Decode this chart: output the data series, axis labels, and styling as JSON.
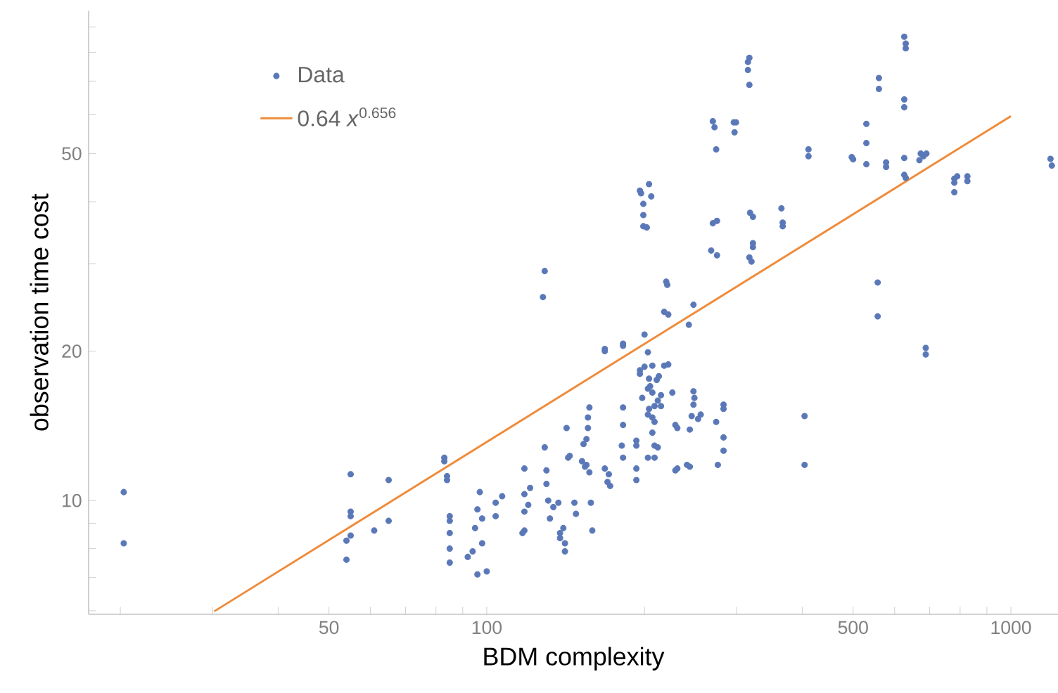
{
  "chart_data": {
    "type": "scatter",
    "xlabel": "BDM complexity",
    "ylabel": "observation time cost",
    "log": "xy",
    "legend": "top left",
    "xlim": [
      17.4,
      1230
    ],
    "ylim": [
      5.9,
      97
    ],
    "xticks": [
      {
        "value": 20,
        "label": null
      },
      {
        "value": 30,
        "label": null
      },
      {
        "value": 40,
        "label": null
      },
      50,
      {
        "value": 60,
        "label": null
      },
      {
        "value": 70,
        "label": null
      },
      {
        "value": 80,
        "label": null
      },
      {
        "value": 90,
        "label": null
      },
      100,
      {
        "value": 200,
        "label": null
      },
      {
        "value": 300,
        "label": null
      },
      {
        "value": 400,
        "label": null
      },
      500,
      {
        "value": 600,
        "label": null
      },
      {
        "value": 700,
        "label": null
      },
      {
        "value": 800,
        "label": null
      },
      {
        "value": 900,
        "label": null
      },
      1000
    ],
    "yticks": [
      {
        "value": 6,
        "label": null
      },
      {
        "value": 7,
        "label": null
      },
      {
        "value": 8,
        "label": null
      },
      {
        "value": 9,
        "label": null
      },
      10,
      20,
      {
        "value": 30,
        "label": null
      },
      {
        "value": 40,
        "label": null
      },
      50,
      {
        "value": 60,
        "label": null
      },
      {
        "value": 70,
        "label": null
      },
      {
        "value": 80,
        "label": null
      },
      {
        "value": 90,
        "label": null
      }
    ],
    "series": [
      {
        "name": "Data",
        "marker": "circle",
        "color": "#5a78b8",
        "x": [
          20.3,
          20.3,
          55,
          55,
          55,
          55,
          54,
          54,
          61,
          65,
          65,
          83,
          83,
          84,
          84,
          85,
          85,
          85,
          85,
          85,
          97,
          96,
          95,
          94,
          92,
          96,
          100,
          98,
          98,
          104,
          104,
          107,
          117,
          118,
          118,
          120,
          118,
          121,
          118,
          130,
          130,
          129,
          131,
          132,
          134,
          137,
          138,
          140,
          138,
          141,
          141,
          142,
          143,
          144,
          147,
          148,
          152,
          153,
          155,
          156,
          156,
          157,
          154,
          155,
          157,
          158,
          159,
          168,
          171,
          172,
          170,
          182,
          182,
          181,
          182,
          193,
          193,
          193,
          193,
          196,
          196,
          200,
          203,
          207,
          204,
          203,
          205,
          207,
          211,
          213,
          198,
          204,
          209,
          212,
          215,
          203,
          207,
          209,
          207,
          209,
          212,
          203,
          209,
          215,
          218,
          222,
          226,
          229,
          231,
          231,
          229,
          241,
          244,
          244,
          246,
          248,
          249,
          248,
          253,
          256,
          274,
          276,
          283,
          283,
          283,
          283,
          243,
          248,
          220,
          221,
          218,
          222,
          168,
          168,
          182,
          182,
          200,
          129,
          128,
          196,
          197,
          199,
          204,
          206,
          199,
          199,
          202,
          270,
          272,
          274,
          296,
          299,
          297,
          270,
          275,
          268,
          275,
          317,
          315,
          315,
          317,
          318,
          322,
          322,
          322,
          317,
          320,
          365,
          367,
          367,
          411,
          411,
          404,
          404,
          557,
          557,
          497,
          500,
          530,
          530,
          530,
          560,
          560,
          578,
          578,
          626,
          630,
          630,
          626,
          626,
          626,
          626,
          630,
          673,
          681,
          690,
          669,
          688,
          688,
          780,
          780,
          780,
          790,
          826,
          826,
          1190,
          1197
        ],
        "values": [
          10.4,
          8.2,
          11.3,
          9.5,
          9.3,
          8.5,
          8.3,
          7.6,
          8.7,
          11.0,
          9.1,
          12.2,
          12.0,
          11.2,
          11.0,
          9.3,
          9.1,
          8.6,
          8.0,
          7.5,
          10.4,
          9.6,
          8.8,
          7.9,
          7.7,
          7.1,
          7.2,
          9.2,
          8.2,
          9.3,
          9.9,
          10.2,
          8.6,
          8.7,
          9.5,
          9.8,
          10.3,
          10.6,
          11.6,
          11.5,
          10.8,
          12.8,
          10.0,
          9.2,
          9.7,
          9.9,
          8.6,
          8.8,
          8.4,
          8.2,
          7.9,
          14.0,
          12.2,
          12.3,
          9.9,
          9.4,
          12.0,
          13.0,
          13.3,
          14.0,
          14.7,
          15.4,
          11.7,
          11.8,
          11.4,
          9.9,
          8.7,
          11.6,
          11.3,
          10.7,
          10.9,
          15.4,
          14.2,
          12.9,
          12.2,
          13.2,
          12.9,
          11.6,
          11.0,
          18.3,
          18.0,
          18.6,
          19.9,
          18.7,
          17.6,
          16.8,
          17.0,
          16.5,
          17.5,
          17.8,
          16.1,
          15.3,
          15.5,
          15.9,
          16.3,
          14.9,
          14.7,
          14.4,
          13.7,
          12.9,
          12.8,
          12.2,
          12.2,
          15.5,
          18.7,
          18.8,
          16.5,
          14.2,
          14.0,
          11.6,
          11.5,
          11.8,
          11.7,
          13.9,
          14.8,
          16.6,
          16.1,
          15.6,
          14.6,
          14.9,
          14.4,
          11.8,
          13.4,
          12.6,
          15.3,
          15.6,
          22.6,
          24.8,
          27.6,
          27.2,
          24.0,
          23.7,
          20.2,
          20.0,
          20.7,
          20.5,
          21.6,
          29.0,
          25.7,
          42.1,
          41.6,
          39.6,
          43.4,
          41.0,
          37.6,
          35.7,
          35.5,
          58.1,
          56.5,
          51.0,
          57.8,
          57.8,
          55.2,
          36.2,
          36.6,
          31.9,
          31.2,
          78,
          76.5,
          73.7,
          68.8,
          38.0,
          37.3,
          33.0,
          32.4,
          30.9,
          30.3,
          38.8,
          35.7,
          36.3,
          51.0,
          49.4,
          14.8,
          11.8,
          27.5,
          23.5,
          49.2,
          48.7,
          57.4,
          52.5,
          47.6,
          71,
          67.5,
          48,
          47,
          86,
          83.3,
          81.5,
          64.3,
          62,
          49,
          45.3,
          44.7,
          50,
          49.4,
          50,
          48.5,
          20.3,
          19.7,
          44.5,
          43.7,
          41.8,
          45,
          45,
          44,
          48.8,
          47.3
        ]
      },
      {
        "name": "0.64 *x*$^{0.656}$",
        "type": "line",
        "color": "#ef8b3a",
        "x": [
          30.2,
          1000
        ],
        "values": [
          5.98,
          59.5
        ]
      }
    ]
  }
}
